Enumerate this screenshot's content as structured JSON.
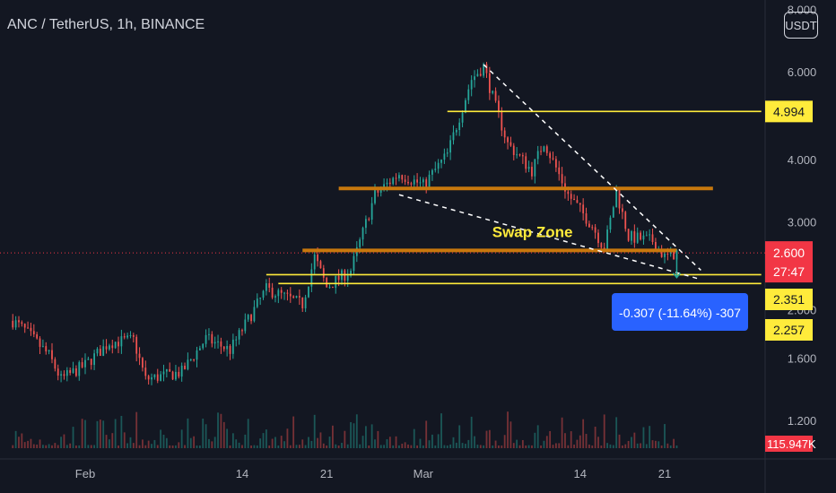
{
  "header": {
    "title": "ANC / TetherUS, 1h, BINANCE",
    "currency_button": "USDT"
  },
  "colors": {
    "background": "#131722",
    "up": "#26a69a",
    "down": "#ef5350",
    "support": "#ffeb3b",
    "zone": "#c8780d",
    "trendline": "#ffffff",
    "measure": "#2962ff",
    "price_tag": "#f23645"
  },
  "chart_data": {
    "type": "candlestick",
    "y_scale": "log",
    "ylim": [
      1.08,
      8.0
    ],
    "y_ticks": [
      "8.000",
      "6.000",
      "4.000",
      "3.000",
      "2.000",
      "1.600",
      "1.200"
    ],
    "y_tick_values": [
      8.0,
      6.0,
      4.0,
      3.0,
      2.0,
      1.6,
      1.2
    ],
    "x_ticks": [
      "Feb",
      "14",
      "21",
      "Mar",
      "14",
      "21"
    ],
    "x_tick_dates": [
      "2022-02-01",
      "2022-02-14",
      "2022-02-21",
      "2022-03-01",
      "2022-03-14",
      "2022-03-21"
    ],
    "x_range": [
      "2022-01-26",
      "2022-03-31"
    ],
    "price_path": [
      {
        "date": "2022-01-26",
        "price": 1.9
      },
      {
        "date": "2022-01-27",
        "price": 1.82
      },
      {
        "date": "2022-01-29",
        "price": 1.62
      },
      {
        "date": "2022-01-30",
        "price": 1.45
      },
      {
        "date": "2022-02-01",
        "price": 1.55
      },
      {
        "date": "2022-02-03",
        "price": 1.72
      },
      {
        "date": "2022-02-05",
        "price": 1.74
      },
      {
        "date": "2022-02-06",
        "price": 1.45
      },
      {
        "date": "2022-02-09",
        "price": 1.5
      },
      {
        "date": "2022-02-11",
        "price": 1.75
      },
      {
        "date": "2022-02-13",
        "price": 1.66
      },
      {
        "date": "2022-02-16",
        "price": 2.2
      },
      {
        "date": "2022-02-17",
        "price": 2.15
      },
      {
        "date": "2022-02-19",
        "price": 2.05
      },
      {
        "date": "2022-02-20",
        "price": 2.55
      },
      {
        "date": "2022-02-21",
        "price": 2.22
      },
      {
        "date": "2022-02-23",
        "price": 2.4
      },
      {
        "date": "2022-02-25",
        "price": 3.4
      },
      {
        "date": "2022-02-27",
        "price": 3.75
      },
      {
        "date": "2022-03-01",
        "price": 3.55
      },
      {
        "date": "2022-03-03",
        "price": 4.1
      },
      {
        "date": "2022-03-05",
        "price": 5.8
      },
      {
        "date": "2022-03-06",
        "price": 6.15
      },
      {
        "date": "2022-03-07",
        "price": 5.1
      },
      {
        "date": "2022-03-08",
        "price": 4.3
      },
      {
        "date": "2022-03-10",
        "price": 3.8
      },
      {
        "date": "2022-03-11",
        "price": 4.35
      },
      {
        "date": "2022-03-13",
        "price": 3.4
      },
      {
        "date": "2022-03-15",
        "price": 2.95
      },
      {
        "date": "2022-03-16",
        "price": 2.65
      },
      {
        "date": "2022-03-17",
        "price": 3.45
      },
      {
        "date": "2022-03-18",
        "price": 2.8
      },
      {
        "date": "2022-03-20",
        "price": 2.75
      },
      {
        "date": "2022-03-21",
        "price": 2.55
      },
      {
        "date": "2022-03-22",
        "price": 2.6
      }
    ],
    "horizontal_levels": [
      {
        "value": 4.994,
        "date_from": "2022-03-03",
        "date_to": "2022-03-29",
        "kind": "support",
        "label": "4.994"
      },
      {
        "value": 3.5,
        "date_from": "2022-02-22",
        "date_to": "2022-03-25",
        "kind": "zone"
      },
      {
        "value": 2.63,
        "date_from": "2022-02-19",
        "date_to": "2022-03-22",
        "kind": "zone"
      },
      {
        "value": 2.351,
        "date_from": "2022-02-16",
        "date_to": "2022-03-29",
        "kind": "support",
        "label": "2.351"
      },
      {
        "value": 2.257,
        "date_from": "2022-02-17",
        "date_to": "2022-03-29",
        "kind": "support",
        "label": "2.257"
      }
    ],
    "trendlines": [
      {
        "from": {
          "date": "2022-03-06",
          "price": 6.2
        },
        "to": {
          "date": "2022-03-24",
          "price": 2.4
        }
      },
      {
        "from": {
          "date": "2022-02-27",
          "price": 3.4
        },
        "to": {
          "date": "2022-03-24",
          "price": 2.3
        }
      }
    ],
    "annotations": [
      {
        "text": "Swap Zone",
        "date": "2022-03-03",
        "price": 2.9
      }
    ],
    "current_price": {
      "value": 2.6,
      "label": "2.600",
      "countdown": "27:47"
    },
    "measurement": {
      "text": "-0.307 (-11.64%) -307",
      "from": 2.63,
      "to": 2.32,
      "date": "2022-03-22"
    },
    "volume_label": "115.947K"
  }
}
